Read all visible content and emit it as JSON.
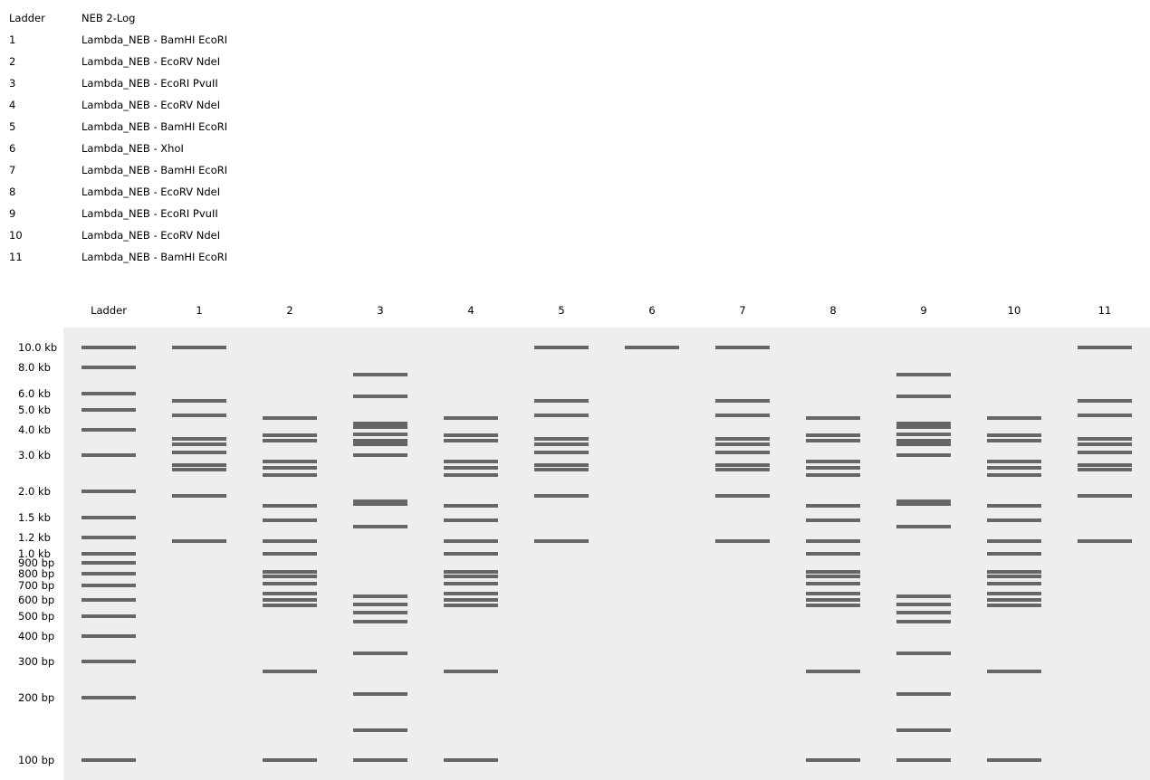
{
  "legend": [
    {
      "lane": "Ladder",
      "desc": "NEB 2-Log"
    },
    {
      "lane": "1",
      "desc": "Lambda_NEB - BamHI EcoRI"
    },
    {
      "lane": "2",
      "desc": "Lambda_NEB - EcoRV NdeI"
    },
    {
      "lane": "3",
      "desc": "Lambda_NEB - EcoRI PvuII"
    },
    {
      "lane": "4",
      "desc": "Lambda_NEB - EcoRV NdeI"
    },
    {
      "lane": "5",
      "desc": "Lambda_NEB - BamHI EcoRI"
    },
    {
      "lane": "6",
      "desc": "Lambda_NEB - XhoI"
    },
    {
      "lane": "7",
      "desc": "Lambda_NEB - BamHI EcoRI"
    },
    {
      "lane": "8",
      "desc": "Lambda_NEB - EcoRV NdeI"
    },
    {
      "lane": "9",
      "desc": "Lambda_NEB - EcoRI PvuII"
    },
    {
      "lane": "10",
      "desc": "Lambda_NEB - EcoRV NdeI"
    },
    {
      "lane": "11",
      "desc": "Lambda_NEB - BamHI EcoRI"
    }
  ],
  "lane_headers": [
    "Ladder",
    "1",
    "2",
    "3",
    "4",
    "5",
    "6",
    "7",
    "8",
    "9",
    "10",
    "11"
  ],
  "size_labels": [
    {
      "text": "10.0 kb",
      "bp": 10000
    },
    {
      "text": "8.0 kb",
      "bp": 8000
    },
    {
      "text": "6.0 kb",
      "bp": 6000
    },
    {
      "text": "5.0 kb",
      "bp": 5000
    },
    {
      "text": "4.0 kb",
      "bp": 4000
    },
    {
      "text": "3.0 kb",
      "bp": 3000
    },
    {
      "text": "2.0 kb",
      "bp": 2000
    },
    {
      "text": "1.5 kb",
      "bp": 1500
    },
    {
      "text": "1.2 kb",
      "bp": 1200
    },
    {
      "text": "1.0 kb",
      "bp": 1000
    },
    {
      "text": "900 bp",
      "bp": 900
    },
    {
      "text": "800 bp",
      "bp": 800
    },
    {
      "text": "700 bp",
      "bp": 700
    },
    {
      "text": "600 bp",
      "bp": 600
    },
    {
      "text": "500 bp",
      "bp": 500
    },
    {
      "text": "400 bp",
      "bp": 400
    },
    {
      "text": "300 bp",
      "bp": 300
    },
    {
      "text": "200 bp",
      "bp": 200
    },
    {
      "text": "100 bp",
      "bp": 100
    }
  ],
  "colors": {
    "gel_background": "#eeeeee",
    "band": "#666666"
  },
  "chart_data": {
    "type": "gel",
    "scale": "log",
    "bp_range": [
      100,
      10000
    ],
    "lanes": [
      {
        "name": "Ladder",
        "bands_bp": [
          10000,
          8000,
          6000,
          5000,
          4000,
          3000,
          2000,
          1500,
          1200,
          1000,
          900,
          800,
          700,
          600,
          500,
          400,
          300,
          200,
          100
        ]
      },
      {
        "name": "1",
        "bands_bp": [
          10000,
          5500,
          4700,
          3600,
          3400,
          3100,
          2700,
          2550,
          1900,
          1150
        ]
      },
      {
        "name": "2",
        "bands_bp": [
          4550,
          3750,
          3550,
          2800,
          2600,
          2400,
          1700,
          1450,
          1150,
          1000,
          820,
          780,
          720,
          640,
          600,
          560,
          270,
          100
        ]
      },
      {
        "name": "3",
        "bands_bp": [
          7400,
          5800,
          4300,
          4100,
          3800,
          3550,
          3400,
          3000,
          1800,
          1750,
          1350,
          620,
          570,
          520,
          470,
          330,
          210,
          140,
          100
        ]
      },
      {
        "name": "4",
        "bands_bp": [
          4550,
          3750,
          3550,
          2800,
          2600,
          2400,
          1700,
          1450,
          1150,
          1000,
          820,
          780,
          720,
          640,
          600,
          560,
          270,
          100
        ]
      },
      {
        "name": "5",
        "bands_bp": [
          10000,
          5500,
          4700,
          3600,
          3400,
          3100,
          2700,
          2550,
          1900,
          1150
        ]
      },
      {
        "name": "6",
        "bands_bp": [
          10000
        ]
      },
      {
        "name": "7",
        "bands_bp": [
          10000,
          5500,
          4700,
          3600,
          3400,
          3100,
          2700,
          2550,
          1900,
          1150
        ]
      },
      {
        "name": "8",
        "bands_bp": [
          4550,
          3750,
          3550,
          2800,
          2600,
          2400,
          1700,
          1450,
          1150,
          1000,
          820,
          780,
          720,
          640,
          600,
          560,
          270,
          100
        ]
      },
      {
        "name": "9",
        "bands_bp": [
          7400,
          5800,
          4300,
          4100,
          3800,
          3550,
          3400,
          3000,
          1800,
          1750,
          1350,
          620,
          570,
          520,
          470,
          330,
          210,
          140,
          100
        ]
      },
      {
        "name": "10",
        "bands_bp": [
          4550,
          3750,
          3550,
          2800,
          2600,
          2400,
          1700,
          1450,
          1150,
          1000,
          820,
          780,
          720,
          640,
          600,
          560,
          270,
          100
        ]
      },
      {
        "name": "11",
        "bands_bp": [
          10000,
          5500,
          4700,
          3600,
          3400,
          3100,
          2700,
          2550,
          1900,
          1150
        ]
      }
    ]
  }
}
